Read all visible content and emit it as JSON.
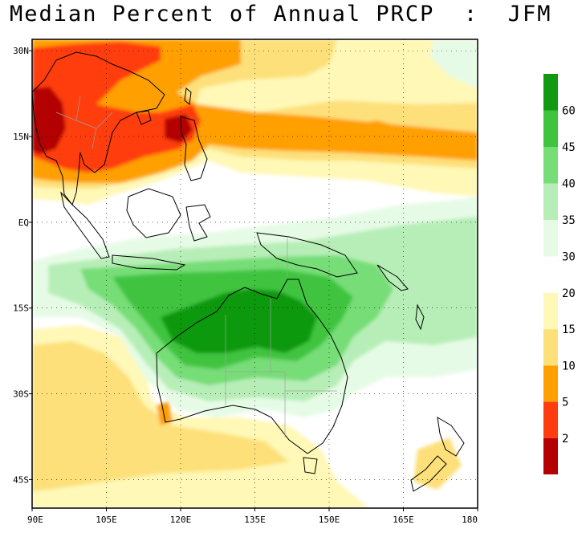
{
  "title": "Median Percent of Annual PRCP  :  JFM",
  "axes": {
    "lat_labels": [
      "30N",
      "15N",
      "EQ",
      "15S",
      "30S",
      "45S"
    ],
    "lon_labels": [
      "90E",
      "105E",
      "120E",
      "135E",
      "150E",
      "165E",
      "180"
    ],
    "lat_values": [
      30,
      15,
      0,
      -15,
      -30,
      -45
    ],
    "lon_values": [
      90,
      105,
      120,
      135,
      150,
      165,
      180
    ],
    "lat_range": [
      -50,
      32
    ],
    "lon_range": [
      90,
      180
    ],
    "grid": "dotted"
  },
  "colorbar_wet": {
    "labels": [
      "60",
      "45",
      "40",
      "35",
      "30"
    ],
    "colors": [
      "#119911",
      "#3fc43f",
      "#77dd77",
      "#b7eeb7",
      "#e6fbe6"
    ]
  },
  "colorbar_dry": {
    "labels": [
      "20",
      "15",
      "10",
      "5",
      "2"
    ],
    "colors": [
      "#fff8b6",
      "#fde07a",
      "#ff9f00",
      "#ff3c10",
      "#b30000"
    ]
  },
  "colors": {
    "coast": "#000000",
    "borders": "#a0a0a0",
    "wet_60": "#119911",
    "wet_45": "#3fc43f",
    "wet_40": "#77dd77",
    "wet_35": "#b7eeb7",
    "wet_30": "#e6fbe6",
    "dry_20": "#fff8b6",
    "dry_15": "#fde07a",
    "dry_10": "#ff9f00",
    "dry_5": "#ff3c10",
    "dry_2": "#b30000"
  }
}
